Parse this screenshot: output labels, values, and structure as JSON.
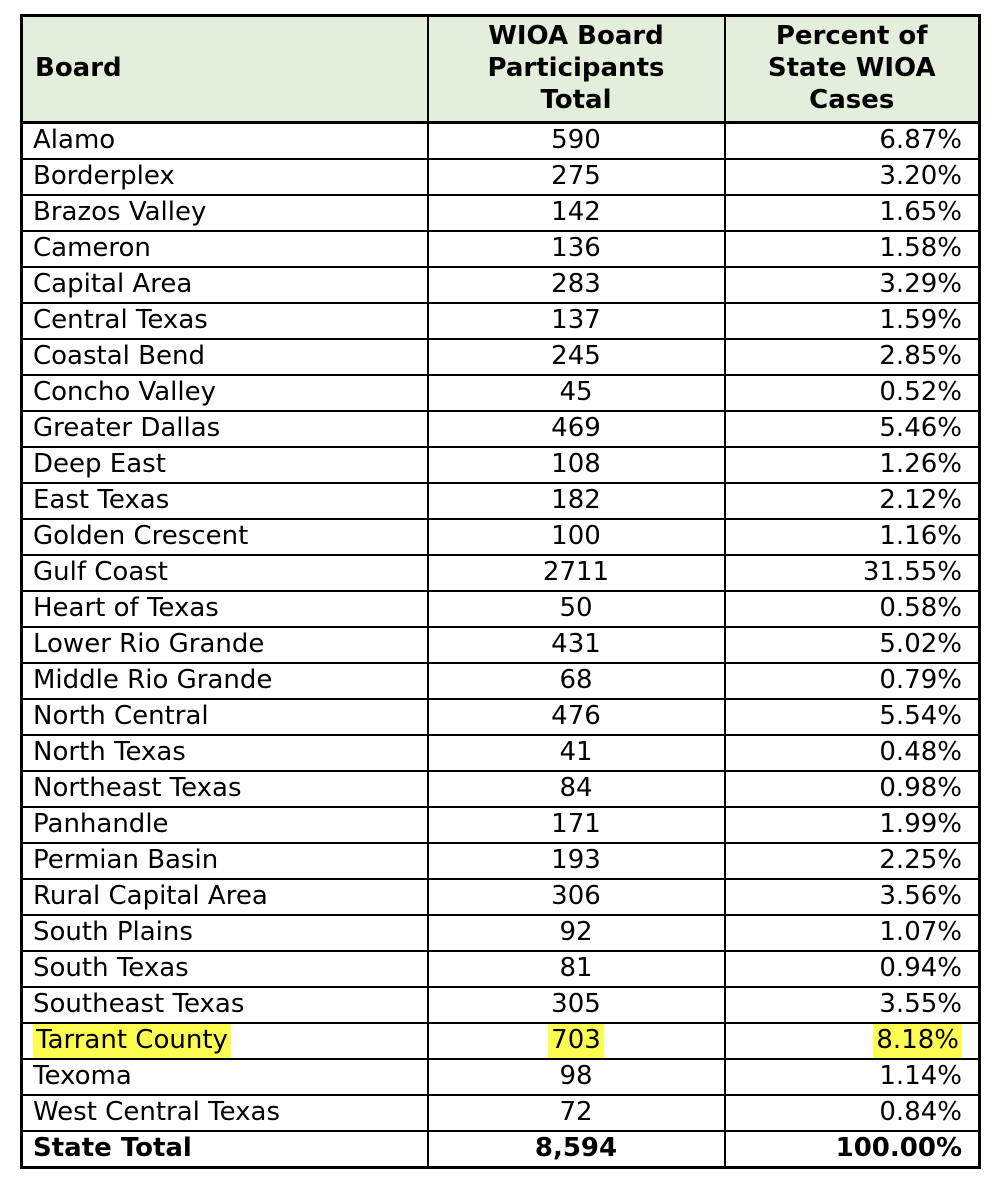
{
  "page": {
    "background": "#ffffff"
  },
  "table": {
    "colors": {
      "header_bg": "#e3efdc",
      "border": "#000000",
      "highlight": "#fdfd51",
      "text": "#000000"
    },
    "columns": {
      "board": "Board",
      "participants": "WIOA Board\nParticipants\nTotal",
      "percent": "Percent of\nState WIOA\nCases"
    },
    "rows": [
      {
        "board": "Alamo",
        "participants": "590",
        "percent": "6.87%",
        "highlighted": false
      },
      {
        "board": "Borderplex",
        "participants": "275",
        "percent": "3.20%",
        "highlighted": false
      },
      {
        "board": "Brazos Valley",
        "participants": "142",
        "percent": "1.65%",
        "highlighted": false
      },
      {
        "board": "Cameron",
        "participants": "136",
        "percent": "1.58%",
        "highlighted": false
      },
      {
        "board": "Capital Area",
        "participants": "283",
        "percent": "3.29%",
        "highlighted": false
      },
      {
        "board": "Central Texas",
        "participants": "137",
        "percent": "1.59%",
        "highlighted": false
      },
      {
        "board": "Coastal Bend",
        "participants": "245",
        "percent": "2.85%",
        "highlighted": false
      },
      {
        "board": "Concho Valley",
        "participants": "45",
        "percent": "0.52%",
        "highlighted": false
      },
      {
        "board": "Greater Dallas",
        "participants": "469",
        "percent": "5.46%",
        "highlighted": false
      },
      {
        "board": "Deep East",
        "participants": "108",
        "percent": "1.26%",
        "highlighted": false
      },
      {
        "board": "East Texas",
        "participants": "182",
        "percent": "2.12%",
        "highlighted": false
      },
      {
        "board": "Golden Crescent",
        "participants": "100",
        "percent": "1.16%",
        "highlighted": false
      },
      {
        "board": "Gulf Coast",
        "participants": "2711",
        "percent": "31.55%",
        "highlighted": false
      },
      {
        "board": "Heart of Texas",
        "participants": "50",
        "percent": "0.58%",
        "highlighted": false
      },
      {
        "board": "Lower Rio Grande",
        "participants": "431",
        "percent": "5.02%",
        "highlighted": false
      },
      {
        "board": "Middle Rio Grande",
        "participants": "68",
        "percent": "0.79%",
        "highlighted": false
      },
      {
        "board": "North Central",
        "participants": "476",
        "percent": "5.54%",
        "highlighted": false
      },
      {
        "board": "North Texas",
        "participants": "41",
        "percent": "0.48%",
        "highlighted": false
      },
      {
        "board": "Northeast Texas",
        "participants": "84",
        "percent": "0.98%",
        "highlighted": false
      },
      {
        "board": "Panhandle",
        "participants": "171",
        "percent": "1.99%",
        "highlighted": false
      },
      {
        "board": "Permian Basin",
        "participants": "193",
        "percent": "2.25%",
        "highlighted": false
      },
      {
        "board": "Rural Capital Area",
        "participants": "306",
        "percent": "3.56%",
        "highlighted": false
      },
      {
        "board": "South Plains",
        "participants": "92",
        "percent": "1.07%",
        "highlighted": false
      },
      {
        "board": "South Texas",
        "participants": "81",
        "percent": "0.94%",
        "highlighted": false
      },
      {
        "board": "Southeast Texas",
        "participants": "305",
        "percent": "3.55%",
        "highlighted": false
      },
      {
        "board": "Tarrant County",
        "participants": "703",
        "percent": "8.18%",
        "highlighted": true
      },
      {
        "board": "Texoma",
        "participants": "98",
        "percent": "1.14%",
        "highlighted": false
      },
      {
        "board": "West Central Texas",
        "participants": "72",
        "percent": "0.84%",
        "highlighted": false
      }
    ],
    "total": {
      "board": "State Total",
      "participants": "8,594",
      "percent": "100.00%"
    }
  }
}
